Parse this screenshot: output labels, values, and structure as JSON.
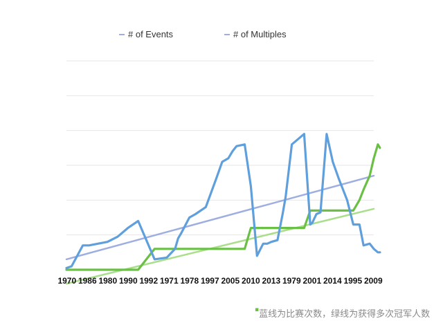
{
  "caption": "蓝线为比赛次数，绿线为获得多次冠军人数",
  "chart_data": {
    "type": "line",
    "categories": [
      "1970",
      "1986",
      "1980",
      "1990",
      "1992",
      "1971",
      "1978",
      "1997",
      "2005",
      "2010",
      "2013",
      "1979",
      "2001",
      "2014",
      "1995",
      "2009"
    ],
    "ylim": [
      0,
      6
    ],
    "grid": true,
    "legend": "top",
    "x": [
      0,
      0.25,
      0.8,
      1.1,
      2.0,
      2.5,
      3.0,
      3.5,
      4.3,
      4.9,
      5.3,
      5.45,
      5.6,
      6.0,
      6.3,
      6.8,
      7.3,
      7.6,
      7.9,
      8.1,
      8.3,
      8.7,
      9.0,
      9.3,
      9.6,
      9.8,
      10.0,
      10.3,
      10.55,
      10.7,
      11.0,
      11.6,
      11.9,
      12.0,
      12.2,
      12.4,
      12.7,
      13.0,
      13.3,
      13.7,
      14.0,
      14.3,
      14.5,
      14.8,
      15.0,
      15.2,
      15.3
    ],
    "series": [
      {
        "name": "# of Events",
        "color": "#5f9fdc",
        "values": [
          0.05,
          0.1,
          0.7,
          0.7,
          0.8,
          0.95,
          1.2,
          1.4,
          0.3,
          0.35,
          0.6,
          0.9,
          1.05,
          1.5,
          1.6,
          1.8,
          2.6,
          3.1,
          3.2,
          3.4,
          3.55,
          3.6,
          2.4,
          0.4,
          0.75,
          0.75,
          0.8,
          0.85,
          1.6,
          2.1,
          3.6,
          3.9,
          1.3,
          1.35,
          1.6,
          1.65,
          3.9,
          3.1,
          2.6,
          2.0,
          1.3,
          1.3,
          0.7,
          0.75,
          0.6,
          0.5,
          0.5
        ]
      },
      {
        "name": "# of Multiples",
        "color": "#6abf45",
        "values": [
          0,
          0,
          0,
          0,
          0,
          0,
          0,
          0,
          0.6,
          0.6,
          0.6,
          0.6,
          0.6,
          0.6,
          0.6,
          0.6,
          0.6,
          0.6,
          0.6,
          0.6,
          0.6,
          0.6,
          1.2,
          1.2,
          1.2,
          1.2,
          1.2,
          1.2,
          1.2,
          1.2,
          1.2,
          1.2,
          1.7,
          1.7,
          1.7,
          1.7,
          1.7,
          1.7,
          1.7,
          1.7,
          1.7,
          2.0,
          2.3,
          2.7,
          3.2,
          3.6,
          3.5
        ]
      }
    ],
    "trendlines": [
      {
        "series": "# of Events",
        "color": "#9eaee0",
        "from": 0.3,
        "to": 2.7
      },
      {
        "series": "# of Multiples",
        "color": "#a9de8a",
        "from": -0.4,
        "to": 1.75
      }
    ]
  }
}
